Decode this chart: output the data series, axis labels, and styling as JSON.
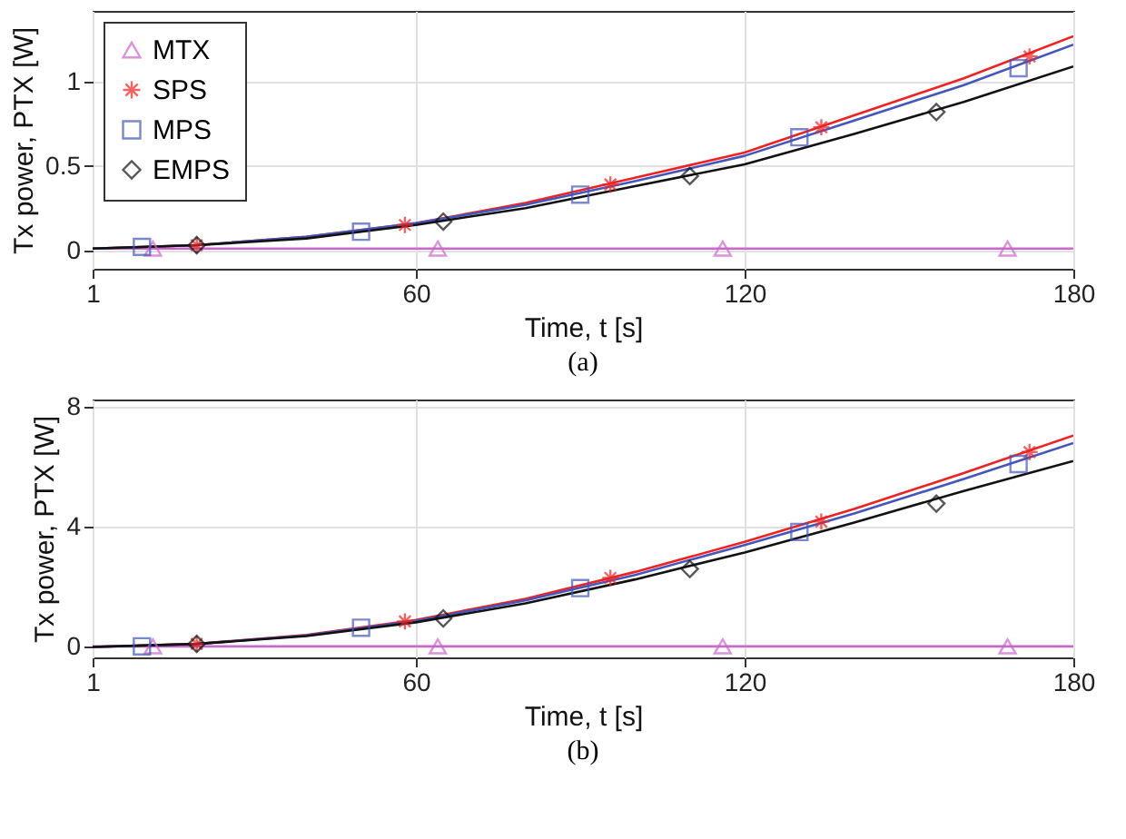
{
  "chart_data": [
    {
      "type": "line",
      "xlabel": "Time, t [s]",
      "ylabel": "Tx power, PTX [W]",
      "annotations": [
        "(a)"
      ],
      "xlim": [
        1,
        180
      ],
      "xticks": [
        1,
        60,
        120,
        180
      ],
      "ylim": [
        -0.11,
        1.42
      ],
      "yticks": [
        0,
        0.5,
        1
      ],
      "grid": true,
      "legend": "top left",
      "line_style": "solid",
      "series": [
        {
          "name": "MTX",
          "color": "#cc66cc",
          "x": [
            1,
            180
          ],
          "values": [
            0.01,
            0.01
          ]
        },
        {
          "name": "SPS",
          "color": "#ee2222",
          "x": [
            1,
            20,
            40,
            60,
            80,
            100,
            120,
            140,
            160,
            180
          ],
          "values": [
            0.01,
            0.03,
            0.08,
            0.16,
            0.28,
            0.43,
            0.58,
            0.8,
            1.02,
            1.27
          ]
        },
        {
          "name": "MPS",
          "color": "#4455bb",
          "x": [
            1,
            20,
            40,
            60,
            80,
            100,
            120,
            140,
            160,
            180
          ],
          "values": [
            0.01,
            0.03,
            0.08,
            0.16,
            0.27,
            0.41,
            0.56,
            0.77,
            0.98,
            1.22
          ]
        },
        {
          "name": "EMPS",
          "color": "#111111",
          "x": [
            1,
            20,
            40,
            60,
            80,
            100,
            120,
            140,
            160,
            180
          ],
          "values": [
            0.01,
            0.03,
            0.07,
            0.15,
            0.25,
            0.38,
            0.51,
            0.69,
            0.88,
            1.09
          ]
        },
        {
          "type": "scatter",
          "marker": "triangle",
          "color": "#cc66cc",
          "x": [
            12,
            64,
            116,
            168
          ],
          "values": [
            0.01,
            0.01,
            0.01,
            0.01
          ]
        },
        {
          "type": "scatter",
          "marker": "cross",
          "color": "#ee2222",
          "x": [
            20,
            58,
            95.5,
            134,
            172
          ],
          "values": [
            0.03,
            0.15,
            0.39,
            0.73,
            1.15
          ]
        },
        {
          "type": "scatter",
          "marker": "square",
          "color": "#4455bb",
          "x": [
            10,
            50,
            90,
            130,
            170
          ],
          "values": [
            0.02,
            0.11,
            0.33,
            0.67,
            1.08
          ]
        },
        {
          "type": "scatter",
          "marker": "diamond",
          "color": "#111111",
          "x": [
            20,
            65,
            110,
            155
          ],
          "values": [
            0.03,
            0.17,
            0.44,
            0.82
          ]
        }
      ]
    },
    {
      "type": "line",
      "xlabel": "Time, t [s]",
      "ylabel": "Tx power, PTX [W]",
      "annotations": [
        "(b)"
      ],
      "xlim": [
        1,
        180
      ],
      "xticks": [
        1,
        60,
        120,
        180
      ],
      "ylim": [
        -0.35,
        8.25
      ],
      "yticks": [
        0,
        4,
        8
      ],
      "grid": true,
      "line_style": "solid",
      "series": [
        {
          "color": "#cc66cc",
          "x": [
            1,
            180
          ],
          "values": [
            0.02,
            0.02
          ]
        },
        {
          "color": "#ee2222",
          "x": [
            1,
            20,
            40,
            60,
            80,
            100,
            120,
            140,
            160,
            180
          ],
          "values": [
            0,
            0.1,
            0.4,
            0.9,
            1.6,
            2.5,
            3.5,
            4.6,
            5.8,
            7.05
          ]
        },
        {
          "color": "#4455bb",
          "x": [
            1,
            20,
            40,
            60,
            80,
            100,
            120,
            140,
            160,
            180
          ],
          "values": [
            0,
            0.1,
            0.38,
            0.87,
            1.55,
            2.4,
            3.4,
            4.45,
            5.6,
            6.8
          ]
        },
        {
          "color": "#111111",
          "x": [
            1,
            20,
            40,
            60,
            80,
            100,
            120,
            140,
            160,
            180
          ],
          "values": [
            0,
            0.1,
            0.36,
            0.82,
            1.45,
            2.25,
            3.15,
            4.15,
            5.2,
            6.2
          ]
        },
        {
          "type": "scatter",
          "marker": "triangle",
          "color": "#cc66cc",
          "x": [
            12,
            64,
            116,
            168
          ],
          "values": [
            0.02,
            0.02,
            0.02,
            0.02
          ]
        },
        {
          "type": "scatter",
          "marker": "cross",
          "color": "#ee2222",
          "x": [
            20,
            58,
            95.5,
            134,
            172
          ],
          "values": [
            0.1,
            0.85,
            2.3,
            4.18,
            6.5
          ]
        },
        {
          "type": "scatter",
          "marker": "square",
          "color": "#4455bb",
          "x": [
            10,
            50,
            90,
            130,
            170
          ],
          "values": [
            0.02,
            0.64,
            1.96,
            3.83,
            6.1
          ]
        },
        {
          "type": "scatter",
          "marker": "diamond",
          "color": "#111111",
          "x": [
            20,
            65,
            110,
            155
          ],
          "values": [
            0.1,
            0.95,
            2.6,
            4.78
          ]
        }
      ]
    }
  ]
}
